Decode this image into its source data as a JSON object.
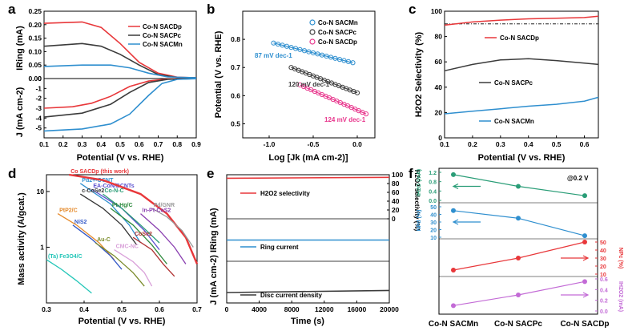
{
  "colors": {
    "red": "#e8373a",
    "gray": "#3b3b3b",
    "blue": "#2f8fcf",
    "pink": "#e8378d",
    "green": "#2a9d77",
    "purple": "#c36bd6"
  },
  "chart_data": [
    {
      "panel": "a",
      "type": "line",
      "xlabel": "Potential (V vs. RHE)",
      "ylabel_top": "IRing (mA)",
      "ylabel_bottom": "J (mA cm-2)",
      "xlim": [
        0.1,
        0.9
      ],
      "xticks": [
        "0.1",
        "0.2",
        "0.3",
        "0.4",
        "0.5",
        "0.6",
        "0.7",
        "0.8",
        "0.9"
      ],
      "ring_ylim": [
        0,
        0.25
      ],
      "ring_yticks": [
        "0.00",
        "0.05",
        "0.10",
        "0.15",
        "0.20",
        "0.25"
      ],
      "disk_ylim": [
        -6,
        0
      ],
      "disk_yticks": [
        "0",
        "-1",
        "-2",
        "-3",
        "-4",
        "-5"
      ],
      "legend": [
        "Co-N SACDp",
        "Co-N SACPc",
        "Co-N SACMn"
      ],
      "series": [
        {
          "name": "Co-N SACDp",
          "color": "#e8373a",
          "ring": [
            [
              0.1,
              0.205
            ],
            [
              0.3,
              0.21
            ],
            [
              0.4,
              0.19
            ],
            [
              0.5,
              0.13
            ],
            [
              0.6,
              0.06
            ],
            [
              0.7,
              0.02
            ],
            [
              0.8,
              0.005
            ],
            [
              0.9,
              0.003
            ]
          ],
          "disk": [
            [
              0.1,
              -3.0
            ],
            [
              0.25,
              -2.85
            ],
            [
              0.35,
              -2.5
            ],
            [
              0.45,
              -1.8
            ],
            [
              0.55,
              -0.8
            ],
            [
              0.65,
              -0.25
            ],
            [
              0.75,
              -0.05
            ],
            [
              0.9,
              -0.01
            ]
          ]
        },
        {
          "name": "Co-N SACPc",
          "color": "#3b3b3b",
          "ring": [
            [
              0.1,
              0.12
            ],
            [
              0.3,
              0.13
            ],
            [
              0.4,
              0.12
            ],
            [
              0.5,
              0.09
            ],
            [
              0.6,
              0.05
            ],
            [
              0.7,
              0.015
            ],
            [
              0.8,
              0.004
            ],
            [
              0.9,
              0.003
            ]
          ],
          "disk": [
            [
              0.1,
              -3.9
            ],
            [
              0.3,
              -3.5
            ],
            [
              0.45,
              -2.6
            ],
            [
              0.55,
              -1.4
            ],
            [
              0.65,
              -0.4
            ],
            [
              0.75,
              -0.08
            ],
            [
              0.9,
              -0.01
            ]
          ]
        },
        {
          "name": "Co-N SACMn",
          "color": "#2f8fcf",
          "ring": [
            [
              0.1,
              0.045
            ],
            [
              0.3,
              0.05
            ],
            [
              0.45,
              0.05
            ],
            [
              0.55,
              0.04
            ],
            [
              0.65,
              0.02
            ],
            [
              0.75,
              0.006
            ],
            [
              0.9,
              0.003
            ]
          ],
          "disk": [
            [
              0.1,
              -5.3
            ],
            [
              0.3,
              -5.1
            ],
            [
              0.45,
              -4.6
            ],
            [
              0.55,
              -3.6
            ],
            [
              0.65,
              -1.7
            ],
            [
              0.72,
              -0.5
            ],
            [
              0.8,
              -0.08
            ],
            [
              0.9,
              -0.02
            ]
          ]
        }
      ]
    },
    {
      "panel": "b",
      "type": "line",
      "xlabel": "Log [Jk (mA cm-2)]",
      "ylabel": "Potential (V vs. RHE)",
      "xlim": [
        -1.3,
        0.2
      ],
      "xticks": [
        "-1.0",
        "-0.5",
        "0.0"
      ],
      "ylim": [
        0.45,
        0.9
      ],
      "yticks": [
        "0.5",
        "0.6",
        "0.7",
        "0.8"
      ],
      "legend": [
        "Co-N SACMn",
        "Co-N SACPc",
        "Co-N SACDp"
      ],
      "series": [
        {
          "name": "Co-N SACMn",
          "color": "#2f8fcf",
          "points": [
            [
              -0.95,
              0.787
            ],
            [
              -0.05,
              0.717
            ]
          ],
          "tafel": "87 mV dec-1"
        },
        {
          "name": "Co-N SACPc",
          "color": "#3b3b3b",
          "points": [
            [
              -0.75,
              0.7
            ],
            [
              0.0,
              0.61
            ]
          ],
          "tafel": "120 mV dec-1"
        },
        {
          "name": "Co-N SACDp",
          "color": "#e8378d",
          "points": [
            [
              -0.65,
              0.638
            ],
            [
              0.1,
              0.535
            ]
          ],
          "tafel": "124 mV dec-1"
        }
      ]
    },
    {
      "panel": "c",
      "type": "line",
      "xlabel": "Potential (V vs. RHE)",
      "ylabel": "H2O2 Selectivity (%)",
      "xlim": [
        0.1,
        0.65
      ],
      "xticks": [
        "0.1",
        "0.2",
        "0.3",
        "0.4",
        "0.5",
        "0.6"
      ],
      "ylim": [
        0,
        100
      ],
      "yticks": [
        "0",
        "20",
        "40",
        "60",
        "80",
        "100"
      ],
      "reference_line": 90,
      "series": [
        {
          "name": "Co-N SACDp",
          "color": "#e8373a",
          "points": [
            [
              0.1,
              89
            ],
            [
              0.2,
              91.5
            ],
            [
              0.3,
              93
            ],
            [
              0.4,
              94
            ],
            [
              0.5,
              94.5
            ],
            [
              0.6,
              95
            ],
            [
              0.65,
              96
            ]
          ]
        },
        {
          "name": "Co-N SACPc",
          "color": "#3b3b3b",
          "points": [
            [
              0.1,
              53
            ],
            [
              0.2,
              58
            ],
            [
              0.3,
              61.5
            ],
            [
              0.4,
              62.5
            ],
            [
              0.5,
              61
            ],
            [
              0.6,
              59
            ],
            [
              0.65,
              58
            ]
          ]
        },
        {
          "name": "Co-N SACMn",
          "color": "#2f8fcf",
          "points": [
            [
              0.1,
              19
            ],
            [
              0.2,
              21
            ],
            [
              0.3,
              23
            ],
            [
              0.4,
              25
            ],
            [
              0.5,
              26.5
            ],
            [
              0.6,
              29
            ],
            [
              0.65,
              32
            ]
          ]
        }
      ]
    },
    {
      "panel": "d",
      "type": "line",
      "xlabel": "Potential (V vs. RHE)",
      "ylabel": "Mass activity (A/gcat.)",
      "xlim": [
        0.3,
        0.7
      ],
      "xticks": [
        "0.3",
        "0.4",
        "0.5",
        "0.6",
        "0.7"
      ],
      "ylim_log": [
        0.1,
        20
      ],
      "yticks": [
        "10",
        "1"
      ],
      "series": [
        {
          "name": "Pd2+-OCNT",
          "color": "#2f8fcf",
          "points": [
            [
              0.39,
              14
            ],
            [
              0.47,
              6
            ],
            [
              0.52,
              2.5
            ],
            [
              0.55,
              1.2
            ]
          ]
        },
        {
          "name": "EA-CoN/BCNTs",
          "color": "#5a4fcf",
          "points": [
            [
              0.42,
              11
            ],
            [
              0.5,
              5
            ],
            [
              0.56,
              2
            ],
            [
              0.6,
              0.9
            ]
          ]
        },
        {
          "name": "c-CoSe2",
          "color": "#333333",
          "points": [
            [
              0.39,
              9
            ],
            [
              0.45,
              5
            ],
            [
              0.5,
              2.5
            ],
            [
              0.54,
              1.1
            ]
          ]
        },
        {
          "name": "Co-N-C",
          "color": "#2a9d77",
          "points": [
            [
              0.45,
              9
            ],
            [
              0.5,
              5
            ],
            [
              0.55,
              2.5
            ],
            [
              0.6,
              1.2
            ]
          ]
        },
        {
          "name": "Pt-Hg/C",
          "color": "#2e8b3e",
          "points": [
            [
              0.47,
              5
            ],
            [
              0.53,
              2.5
            ],
            [
              0.58,
              1.1
            ],
            [
              0.62,
              0.5
            ]
          ]
        },
        {
          "name": "Co SACDp (this work)",
          "color": "#e8373a",
          "points": [
            [
              0.36,
              20
            ],
            [
              0.45,
              16
            ],
            [
              0.55,
              9
            ],
            [
              0.62,
              4
            ],
            [
              0.67,
              1.5
            ],
            [
              0.7,
              0.5
            ]
          ]
        },
        {
          "name": "Pd/GNR",
          "color": "#9a9a9a",
          "points": [
            [
              0.58,
              5
            ],
            [
              0.62,
              3.5
            ],
            [
              0.66,
              2
            ],
            [
              0.69,
              1
            ]
          ]
        },
        {
          "name": "In-Pt-CoS2",
          "color": "#8a3fb0",
          "points": [
            [
              0.55,
              4
            ],
            [
              0.6,
              2
            ],
            [
              0.64,
              1
            ],
            [
              0.67,
              0.5
            ]
          ]
        },
        {
          "name": "PtP2/C",
          "color": "#e58a2b",
          "points": [
            [
              0.33,
              4
            ],
            [
              0.38,
              2.5
            ],
            [
              0.44,
              1.2
            ],
            [
              0.48,
              0.6
            ]
          ]
        },
        {
          "name": "NiS2",
          "color": "#3358c7",
          "points": [
            [
              0.37,
              2.5
            ],
            [
              0.42,
              1.4
            ],
            [
              0.47,
              0.7
            ],
            [
              0.5,
              0.4
            ]
          ]
        },
        {
          "name": "Au-C",
          "color": "#7a8a2a",
          "points": [
            [
              0.43,
              1.2
            ],
            [
              0.48,
              0.7
            ],
            [
              0.53,
              0.35
            ],
            [
              0.56,
              0.2
            ]
          ]
        },
        {
          "name": "CoSe2",
          "color": "#b03030",
          "points": [
            [
              0.53,
              1.5
            ],
            [
              0.58,
              0.9
            ],
            [
              0.61,
              0.5
            ],
            [
              0.64,
              0.3
            ]
          ]
        },
        {
          "name": "CMC-NC",
          "color": "#d9a0d9",
          "points": [
            [
              0.48,
              0.9
            ],
            [
              0.53,
              0.55
            ],
            [
              0.56,
              0.35
            ],
            [
              0.58,
              0.2
            ]
          ]
        },
        {
          "name": "(Ta) Fe3O4/C",
          "color": "#23c6b8",
          "points": [
            [
              0.3,
              0.6
            ],
            [
              0.34,
              0.4
            ],
            [
              0.38,
              0.25
            ],
            [
              0.42,
              0.15
            ]
          ]
        }
      ]
    },
    {
      "panel": "e",
      "type": "line",
      "xlabel": "Time (s)",
      "ylabel_left": "J (mA cm-2) IRing (mA)",
      "ylabel_right": "H2O2 selectivity (%)",
      "xlim": [
        0,
        20000
      ],
      "xticks": [
        "0",
        "4000",
        "8000",
        "12000",
        "16000",
        "20000"
      ],
      "right_ticks": [
        "100",
        "80",
        "60",
        "40",
        "20",
        "0"
      ],
      "series": [
        {
          "name": "H2O2 selectivity",
          "color": "#e8373a",
          "points": [
            [
              0,
              92
            ],
            [
              20000,
              94
            ]
          ]
        },
        {
          "name": "Ring current",
          "color": "#2f8fcf",
          "points": [
            [
              0,
              0.2
            ],
            [
              20000,
              0.2
            ]
          ]
        },
        {
          "name": "Disc current density",
          "color": "#3b3b3b",
          "points": [
            [
              0,
              -3.0
            ],
            [
              20000,
              -2.8
            ]
          ]
        }
      ]
    },
    {
      "panel": "f",
      "type": "line",
      "categories": [
        "Co-N SACMn",
        "Co-N SACPc",
        "Co-N SACDp"
      ],
      "annotation": "@0.2 V",
      "series": [
        {
          "name": "IH2O (mA)",
          "color": "#2a9d77",
          "values": [
            1.1,
            0.6,
            0.2
          ],
          "ticks": [
            "1.2",
            "0.8",
            "0.4",
            "0.0"
          ]
        },
        {
          "name": "NPd (%)",
          "color": "#2f8fcf",
          "values": [
            45,
            35,
            12
          ],
          "ticks": [
            "50",
            "40",
            "30",
            "20",
            "10"
          ]
        },
        {
          "name": "NPc (%)",
          "color": "#e8373a",
          "values": [
            15,
            30,
            50
          ],
          "ticks": [
            "50",
            "40",
            "30",
            "20",
            "10"
          ]
        },
        {
          "name": "IH2O2 (mA)",
          "color": "#c36bd6",
          "values": [
            0.1,
            0.3,
            0.55
          ],
          "ticks": [
            "0.6",
            "0.4",
            "0.2",
            "0.0"
          ]
        }
      ]
    }
  ]
}
